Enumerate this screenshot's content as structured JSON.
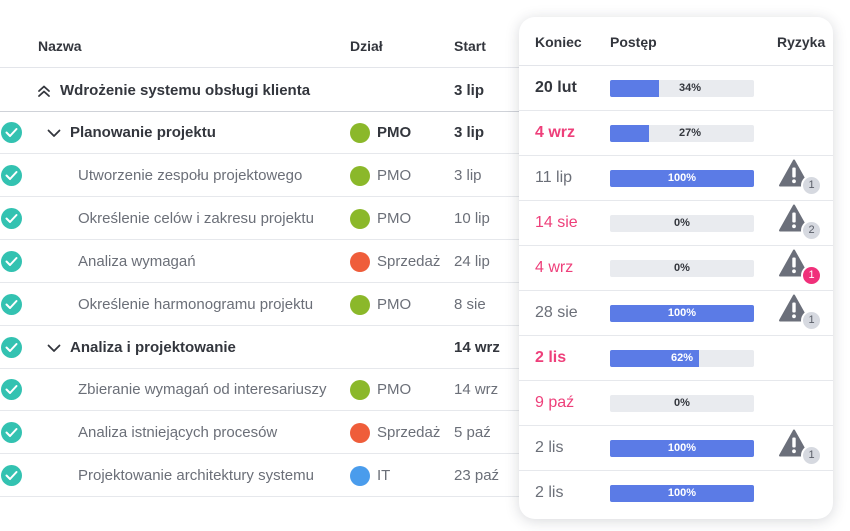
{
  "columns": {
    "name": "Nazwa",
    "dept": "Dział",
    "start": "Start",
    "end": "Koniec",
    "progress": "Postęp",
    "risk": "Ryzyka"
  },
  "colors": {
    "pmo": "#8bb82a",
    "sprzedaz": "#ef5d3a",
    "it": "#4a9cec",
    "progress_fill": "#5b7be6",
    "overdue_text": "#ee3f7a",
    "check": "#33c2b1",
    "risk_triangle": "#6b6f7a"
  },
  "rows": [
    {
      "type": "project",
      "name": "Wdrożenie systemu obsługi klienta",
      "dept": "",
      "dept_color": "",
      "start": "3 lip",
      "end": "20 lut",
      "end_style": "bold",
      "progress": 34,
      "progress_label": "34%",
      "risk": "",
      "risk_badge_style": ""
    },
    {
      "type": "group",
      "name": "Planowanie projektu",
      "dept": "PMO",
      "dept_color": "#8bb82a",
      "start": "3 lip",
      "end": "4 wrz",
      "end_style": "overdue",
      "progress": 27,
      "progress_label": "27%",
      "risk": "",
      "risk_badge_style": ""
    },
    {
      "type": "task",
      "name": "Utworzenie zespołu projektowego",
      "dept": "PMO",
      "dept_color": "#8bb82a",
      "start": "3 lip",
      "end": "11 lip",
      "end_style": "normal",
      "progress": 100,
      "progress_label": "100%",
      "risk": "1",
      "risk_badge_style": "grey"
    },
    {
      "type": "task",
      "name": "Określenie celów i zakresu projektu",
      "dept": "PMO",
      "dept_color": "#8bb82a",
      "start": "10 lip",
      "end": "14 sie",
      "end_style": "overdue-light",
      "progress": 0,
      "progress_label": "0%",
      "risk": "2",
      "risk_badge_style": "grey"
    },
    {
      "type": "task",
      "name": "Analiza wymagań",
      "dept": "Sprzedaż",
      "dept_color": "#ef5d3a",
      "start": "24 lip",
      "end": "4 wrz",
      "end_style": "overdue-light",
      "progress": 0,
      "progress_label": "0%",
      "risk": "1",
      "risk_badge_style": "pink"
    },
    {
      "type": "task",
      "name": "Określenie harmonogramu projektu",
      "dept": "PMO",
      "dept_color": "#8bb82a",
      "start": "8 sie",
      "end": "28 sie",
      "end_style": "normal",
      "progress": 100,
      "progress_label": "100%",
      "risk": "1",
      "risk_badge_style": "grey"
    },
    {
      "type": "group",
      "name": "Analiza i projektowanie",
      "dept": "",
      "dept_color": "",
      "start": "14 wrz",
      "end": "2 lis",
      "end_style": "overdue",
      "progress": 62,
      "progress_label": "62%",
      "risk": "",
      "risk_badge_style": ""
    },
    {
      "type": "task",
      "name": "Zbieranie wymagań od interesariuszy",
      "dept": "PMO",
      "dept_color": "#8bb82a",
      "start": "14 wrz",
      "end": "9 paź",
      "end_style": "overdue-light",
      "progress": 0,
      "progress_label": "0%",
      "risk": "",
      "risk_badge_style": ""
    },
    {
      "type": "task",
      "name": "Analiza istniejących procesów",
      "dept": "Sprzedaż",
      "dept_color": "#ef5d3a",
      "start": "5 paź",
      "end": "2 lis",
      "end_style": "normal",
      "progress": 100,
      "progress_label": "100%",
      "risk": "1",
      "risk_badge_style": "grey"
    },
    {
      "type": "task",
      "name": "Projektowanie architektury systemu",
      "dept": "IT",
      "dept_color": "#4a9cec",
      "start": "23 paź",
      "end": "2 lis",
      "end_style": "normal",
      "progress": 100,
      "progress_label": "100%",
      "risk": "",
      "risk_badge_style": ""
    }
  ]
}
